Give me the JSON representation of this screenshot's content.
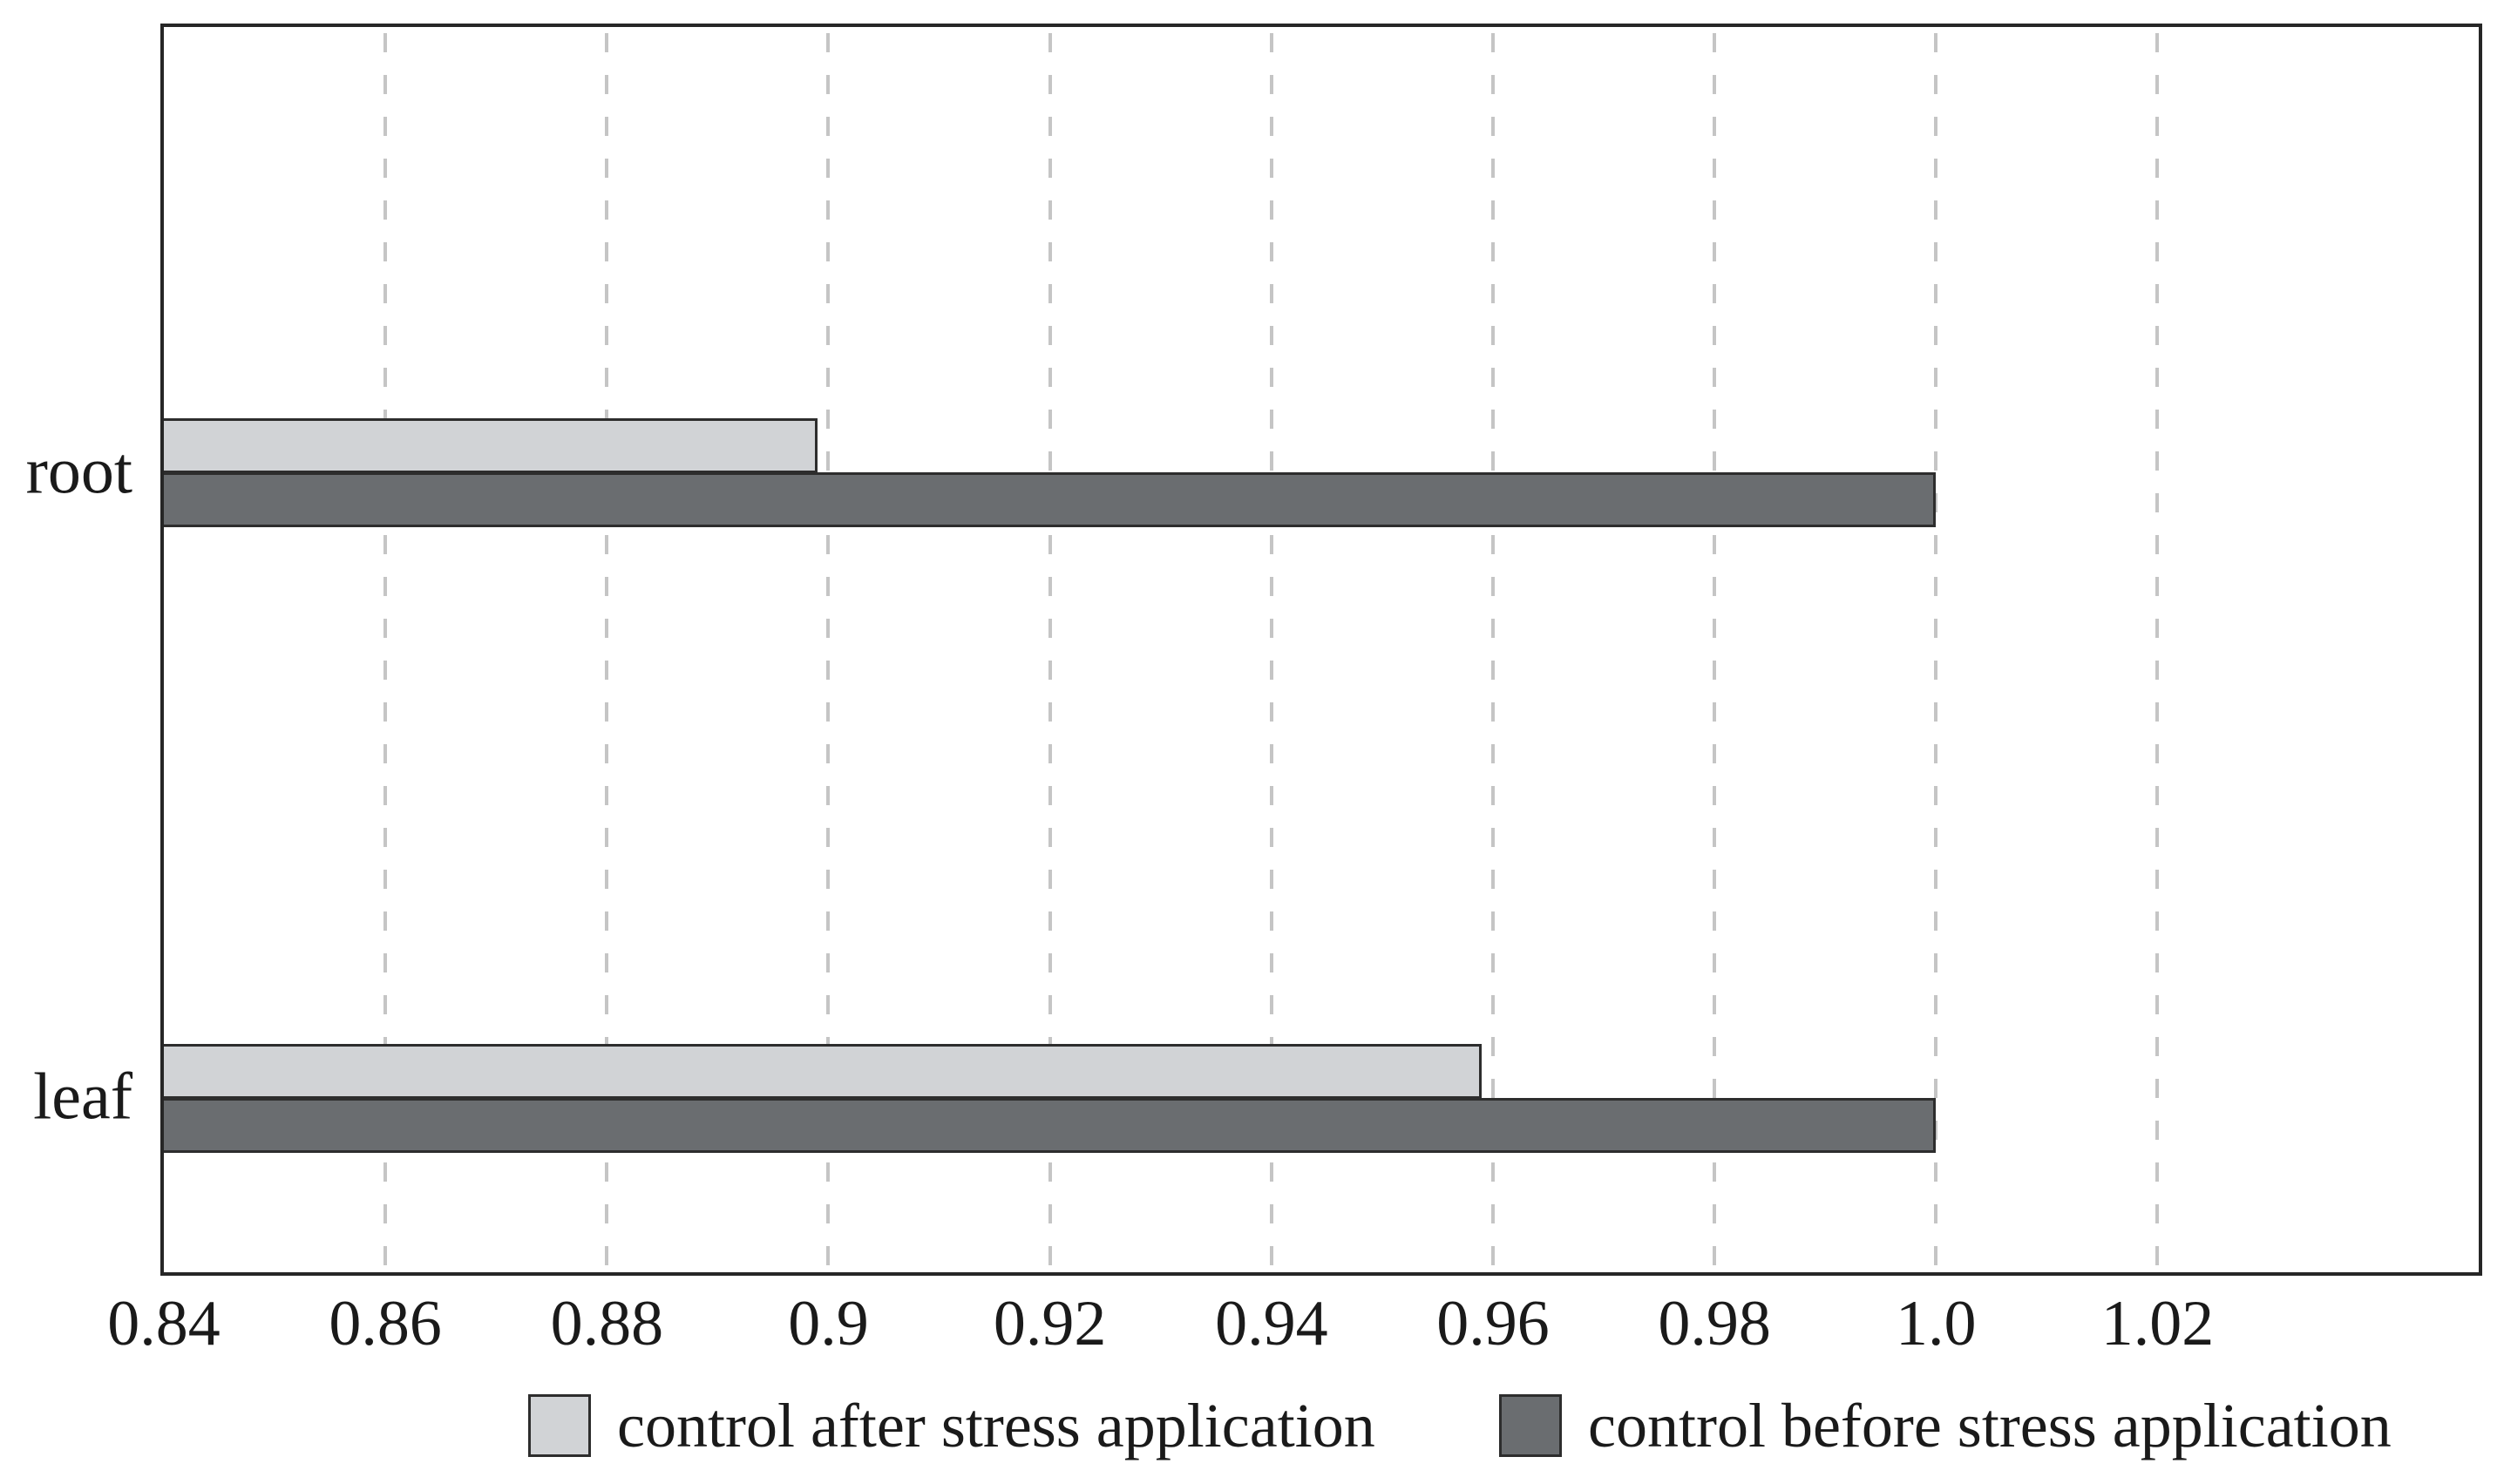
{
  "figure": {
    "background": "#ffffff",
    "plot_border_color": "#262626",
    "bar_border_color": "#2d2d2d",
    "gridline_color": "#c5c5c5",
    "text_color": "#1a1a1a"
  },
  "chart_data": {
    "type": "bar",
    "orientation": "horizontal",
    "title": "",
    "xlabel": "",
    "ylabel": "",
    "categories": [
      "root",
      "leaf"
    ],
    "series": [
      {
        "name": "control after stress application",
        "color": "#d1d3d6",
        "values": [
          0.899,
          0.959
        ]
      },
      {
        "name": "control before stress application",
        "color": "#6a6d70",
        "values": [
          1.0,
          1.0
        ]
      }
    ],
    "xlim": [
      0.84,
      1.049
    ],
    "xtick_values": [
      0.84,
      0.86,
      0.88,
      0.9,
      0.92,
      0.94,
      0.96,
      0.98,
      1.0,
      1.02
    ],
    "xtick_labels": [
      "0.84",
      "0.86",
      "0.88",
      "0.9",
      "0.92",
      "0.94",
      "0.96",
      "0.98",
      "1.0",
      "1.02"
    ],
    "grid": "vertical-dashed",
    "legend_position": "bottom-center"
  }
}
